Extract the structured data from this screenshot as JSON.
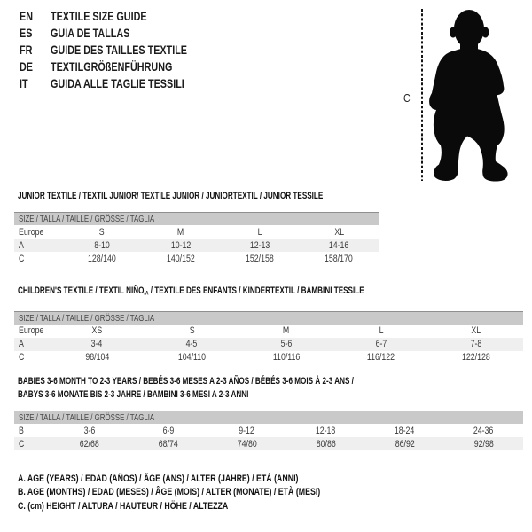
{
  "languages": [
    {
      "code": "EN",
      "title": "TEXTILE SIZE GUIDE"
    },
    {
      "code": "ES",
      "title": "GUÍA DE TALLAS"
    },
    {
      "code": "FR",
      "title": "GUIDE DES TAILLES TEXTILE"
    },
    {
      "code": "DE",
      "title": "TEXTILGRÖßENFÜHRUNG"
    },
    {
      "code": "IT",
      "title": "GUIDA ALLE TAGLIE TESSILI"
    }
  ],
  "figure": {
    "height_label": "C"
  },
  "sections": [
    {
      "title_lines": [
        [
          {
            "t": "JUNIOR TEXTILE / TEXTIL JUNIOR/ TEXTILE JUNIOR / JUNIORTEXTIL / JUNIOR TESSILE"
          }
        ]
      ],
      "size_header": "SIZE / TALLA / TAILLE / GRÖSSE / TAGLIA",
      "rows": [
        [
          "Europe",
          "S",
          "M",
          "L",
          "XL"
        ],
        [
          "A",
          "8-10",
          "10-12",
          "12-13",
          "14-16"
        ],
        [
          "C",
          "128/140",
          "140/152",
          "152/158",
          "158/170"
        ]
      ]
    },
    {
      "title_lines": [
        [
          {
            "t": "CHILDREN'S TEXTILE / TEXTIL NIÑO"
          },
          {
            "t": "/A",
            "sub": true
          },
          {
            "t": " / TEXTILE DES ENFANTS / KINDERTEXTIL / BAMBINI TESSILE"
          }
        ]
      ],
      "size_header": "SIZE / TALLA / TAILLE / GRÖSSE / TAGLIA",
      "rows": [
        [
          "Europe",
          "XS",
          "S",
          "M",
          "L",
          "XL"
        ],
        [
          "A",
          "3-4",
          "4-5",
          "5-6",
          "6-7",
          "7-8"
        ],
        [
          "C",
          "98/104",
          "104/110",
          "110/116",
          "116/122",
          "122/128"
        ]
      ]
    },
    {
      "title_lines": [
        [
          {
            "t": "BABIES 3-6 MONTH TO 2-3 YEARS / BEBÉS 3-6 MESES A 2-3 AÑOS / BÉBÉS 3-6 MOIS À 2-3 ANS /"
          }
        ],
        [
          {
            "t": "BABYS 3-6 MONATE BIS 2-3 JAHRE / BAMBINI 3-6 MESI A 2-3 ANNI"
          }
        ]
      ],
      "size_header": "SIZE / TALLA / TAILLE / GRÖSSE / TAGLIA",
      "rows": [
        [
          "B",
          "3-6",
          "6-9",
          "9-12",
          "12-18",
          "18-24",
          "24-36"
        ],
        [
          "C",
          "62/68",
          "68/74",
          "74/80",
          "80/86",
          "86/92",
          "92/98"
        ]
      ]
    }
  ],
  "footnotes": [
    "A. AGE (YEARS) / EDAD (AÑOS) / ÂGE (ANS) / ALTER (JAHRE) / ETÀ (ANNI)",
    "B. AGE (MONTHS) / EDAD (MESES) / ÂGE (MOIS) / ALTER (MONATE) / ETÀ (MESI)",
    "C. (cm) HEIGHT / ALTURA / HAUTEUR / HÖHE / ALTEZZA"
  ],
  "colors": {
    "silhouette": "#0a0a0a",
    "bar_fill": "#c9c9c9",
    "bar_border": "#8f8f8f",
    "row_alt": "#efefef"
  }
}
